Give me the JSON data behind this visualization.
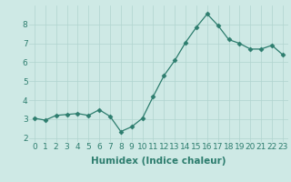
{
  "x": [
    0,
    1,
    2,
    3,
    4,
    5,
    6,
    7,
    8,
    9,
    10,
    11,
    12,
    13,
    14,
    15,
    16,
    17,
    18,
    19,
    20,
    21,
    22,
    23
  ],
  "y": [
    3.05,
    2.95,
    3.2,
    3.25,
    3.3,
    3.2,
    3.5,
    3.15,
    2.35,
    2.6,
    3.05,
    4.2,
    5.3,
    6.1,
    7.05,
    7.85,
    8.55,
    7.95,
    7.2,
    7.0,
    6.7,
    6.7,
    6.9,
    6.4
  ],
  "line_color": "#2d7d6e",
  "marker": "D",
  "marker_size": 2.5,
  "bg_color": "#cee9e5",
  "grid_color": "#b0d4cf",
  "xlabel": "Humidex (Indice chaleur)",
  "xlabel_fontsize": 7.5,
  "tick_fontsize": 6.5,
  "ylim": [
    1.8,
    9.0
  ],
  "xlim": [
    -0.5,
    23.5
  ],
  "yticks": [
    2,
    3,
    4,
    5,
    6,
    7,
    8
  ],
  "xticks": [
    0,
    1,
    2,
    3,
    4,
    5,
    6,
    7,
    8,
    9,
    10,
    11,
    12,
    13,
    14,
    15,
    16,
    17,
    18,
    19,
    20,
    21,
    22,
    23
  ],
  "xtick_labels": [
    "0",
    "1",
    "2",
    "3",
    "4",
    "5",
    "6",
    "7",
    "8",
    "9",
    "10",
    "11",
    "12",
    "13",
    "14",
    "15",
    "16",
    "17",
    "18",
    "19",
    "20",
    "21",
    "22",
    "23"
  ]
}
